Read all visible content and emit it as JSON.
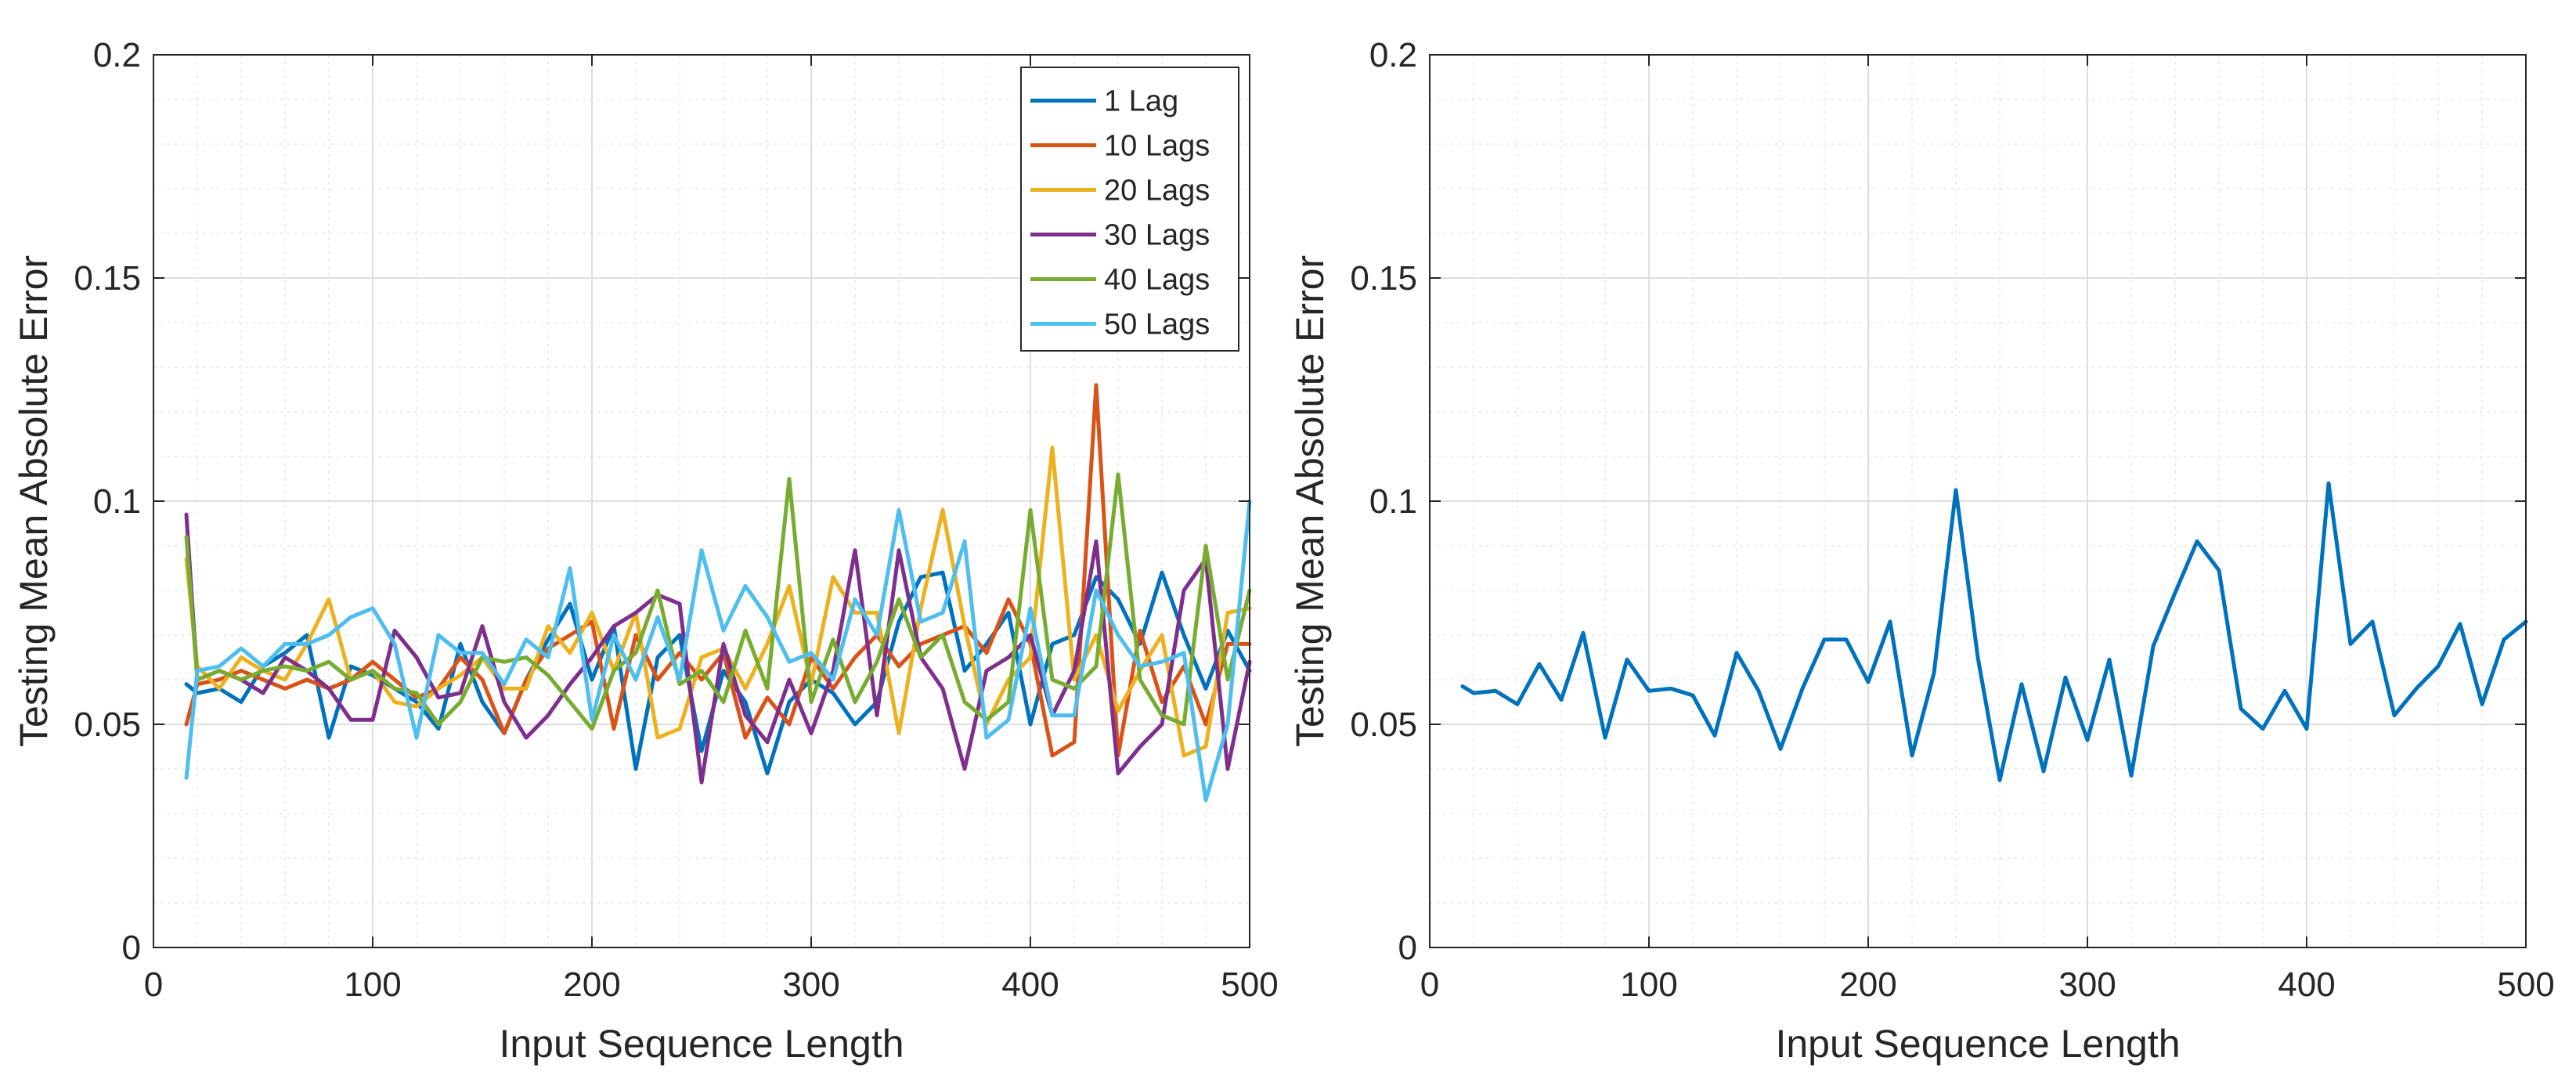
{
  "colors": {
    "series": [
      "#0072BD",
      "#D95319",
      "#EDB120",
      "#7E2F8E",
      "#77AC30",
      "#4DBEEE"
    ],
    "axis": "#262626",
    "grid_major": "#dedede",
    "grid_minor": "#ececec",
    "background": "#ffffff"
  },
  "chart_data": [
    {
      "type": "line",
      "title": "",
      "xlabel": "Input Sequence Length",
      "ylabel": "Testing Mean Absolute Error",
      "xlim": [
        0,
        500
      ],
      "ylim": [
        0,
        0.2
      ],
      "xticks": [
        0,
        100,
        200,
        300,
        400,
        500
      ],
      "xtick_labels": [
        "0",
        "100",
        "200",
        "300",
        "400",
        "500"
      ],
      "yticks": [
        0,
        0.05,
        0.1,
        0.15,
        0.2
      ],
      "ytick_labels": [
        "0",
        "0.05",
        "0.1",
        "0.15",
        "0.2"
      ],
      "grid": true,
      "minor_grid": true,
      "legend_position": "top-right",
      "x": [
        15,
        20,
        30,
        40,
        50,
        60,
        70,
        80,
        90,
        100,
        110,
        120,
        130,
        140,
        150,
        160,
        170,
        180,
        190,
        200,
        210,
        220,
        230,
        240,
        250,
        260,
        270,
        280,
        290,
        300,
        310,
        320,
        330,
        340,
        350,
        360,
        370,
        380,
        390,
        400,
        410,
        420,
        430,
        440,
        450,
        460,
        470,
        480,
        490,
        500
      ],
      "series": [
        {
          "name": "1 Lag",
          "values": [
            0.059,
            0.057,
            0.058,
            0.055,
            0.063,
            0.066,
            0.07,
            0.047,
            0.063,
            0.061,
            0.058,
            0.055,
            0.049,
            0.068,
            0.055,
            0.048,
            0.06,
            0.069,
            0.077,
            0.06,
            0.072,
            0.04,
            0.065,
            0.07,
            0.044,
            0.062,
            0.055,
            0.039,
            0.055,
            0.06,
            0.057,
            0.05,
            0.055,
            0.073,
            0.083,
            0.084,
            0.062,
            0.068,
            0.075,
            0.05,
            0.068,
            0.07,
            0.083,
            0.078,
            0.068,
            0.084,
            0.07,
            0.058,
            0.071,
            0.062
          ]
        },
        {
          "name": "10 Lags",
          "values": [
            0.05,
            0.059,
            0.06,
            0.062,
            0.06,
            0.058,
            0.06,
            0.058,
            0.06,
            0.064,
            0.06,
            0.056,
            0.058,
            0.065,
            0.06,
            0.048,
            0.06,
            0.067,
            0.07,
            0.073,
            0.049,
            0.07,
            0.06,
            0.066,
            0.06,
            0.066,
            0.047,
            0.056,
            0.05,
            0.065,
            0.058,
            0.065,
            0.07,
            0.063,
            0.068,
            0.07,
            0.072,
            0.066,
            0.078,
            0.068,
            0.043,
            0.046,
            0.126,
            0.043,
            0.071,
            0.055,
            0.063,
            0.05,
            0.068,
            0.068
          ]
        },
        {
          "name": "20 Lags",
          "values": [
            0.087,
            0.063,
            0.058,
            0.065,
            0.062,
            0.06,
            0.068,
            0.078,
            0.06,
            0.062,
            0.055,
            0.054,
            0.058,
            0.061,
            0.065,
            0.058,
            0.058,
            0.072,
            0.066,
            0.075,
            0.062,
            0.075,
            0.047,
            0.049,
            0.065,
            0.067,
            0.058,
            0.068,
            0.081,
            0.059,
            0.083,
            0.075,
            0.075,
            0.048,
            0.076,
            0.098,
            0.072,
            0.05,
            0.06,
            0.065,
            0.112,
            0.06,
            0.07,
            0.053,
            0.062,
            0.07,
            0.043,
            0.045,
            0.075,
            0.076
          ]
        },
        {
          "name": "30 Lags",
          "values": [
            0.097,
            0.06,
            0.062,
            0.06,
            0.057,
            0.065,
            0.062,
            0.058,
            0.051,
            0.051,
            0.071,
            0.065,
            0.056,
            0.057,
            0.072,
            0.055,
            0.047,
            0.052,
            0.059,
            0.065,
            0.072,
            0.075,
            0.079,
            0.077,
            0.037,
            0.068,
            0.052,
            0.046,
            0.06,
            0.048,
            0.062,
            0.089,
            0.052,
            0.089,
            0.065,
            0.058,
            0.04,
            0.062,
            0.065,
            0.07,
            0.052,
            0.062,
            0.091,
            0.039,
            0.045,
            0.05,
            0.08,
            0.087,
            0.04,
            0.064
          ]
        },
        {
          "name": "40 Lags",
          "values": [
            0.092,
            0.06,
            0.062,
            0.06,
            0.062,
            0.063,
            0.062,
            0.064,
            0.06,
            0.062,
            0.058,
            0.057,
            0.05,
            0.055,
            0.065,
            0.064,
            0.065,
            0.061,
            0.055,
            0.049,
            0.062,
            0.066,
            0.08,
            0.059,
            0.062,
            0.055,
            0.071,
            0.058,
            0.105,
            0.055,
            0.069,
            0.055,
            0.064,
            0.078,
            0.065,
            0.07,
            0.055,
            0.051,
            0.055,
            0.098,
            0.06,
            0.058,
            0.063,
            0.106,
            0.06,
            0.052,
            0.05,
            0.09,
            0.06,
            0.08
          ]
        },
        {
          "name": "50 Lags",
          "values": [
            0.038,
            0.062,
            0.063,
            0.067,
            0.063,
            0.068,
            0.068,
            0.07,
            0.074,
            0.076,
            0.068,
            0.047,
            0.07,
            0.066,
            0.066,
            0.059,
            0.069,
            0.065,
            0.085,
            0.051,
            0.07,
            0.06,
            0.074,
            0.06,
            0.089,
            0.071,
            0.081,
            0.074,
            0.064,
            0.066,
            0.06,
            0.078,
            0.07,
            0.098,
            0.073,
            0.075,
            0.091,
            0.047,
            0.051,
            0.076,
            0.052,
            0.052,
            0.08,
            0.07,
            0.063,
            0.064,
            0.066,
            0.033,
            0.05,
            0.1
          ]
        }
      ]
    },
    {
      "type": "line",
      "title": "",
      "xlabel": "Input Sequence Length",
      "ylabel": "Testing Mean Absolute Error",
      "xlim": [
        0,
        500
      ],
      "ylim": [
        0,
        0.2
      ],
      "xticks": [
        0,
        100,
        200,
        300,
        400,
        500
      ],
      "xtick_labels": [
        "0",
        "100",
        "200",
        "300",
        "400",
        "500"
      ],
      "yticks": [
        0,
        0.05,
        0.1,
        0.15,
        0.2
      ],
      "ytick_labels": [
        "0",
        "0.05",
        "0.1",
        "0.15",
        "0.2"
      ],
      "grid": true,
      "minor_grid": true,
      "x": [
        15,
        20,
        30,
        40,
        50,
        60,
        70,
        80,
        90,
        100,
        110,
        120,
        130,
        140,
        150,
        160,
        170,
        180,
        190,
        200,
        210,
        220,
        230,
        240,
        250,
        260,
        270,
        280,
        290,
        300,
        310,
        320,
        330,
        340,
        350,
        360,
        370,
        380,
        390,
        400,
        410,
        420,
        430,
        440,
        450,
        460,
        470,
        480,
        490,
        500
      ],
      "series": [
        {
          "name": "",
          "values": [
            0.0585,
            0.057,
            0.0575,
            0.0545,
            0.0635,
            0.0555,
            0.0705,
            0.047,
            0.0645,
            0.0575,
            0.058,
            0.0565,
            0.0475,
            0.066,
            0.0575,
            0.0445,
            0.058,
            0.069,
            0.069,
            0.0595,
            0.073,
            0.043,
            0.0615,
            0.1025,
            0.065,
            0.0375,
            0.059,
            0.0395,
            0.0605,
            0.0465,
            0.0645,
            0.0385,
            0.0675,
            0.0795,
            0.091,
            0.0845,
            0.0535,
            0.049,
            0.0575,
            0.049,
            0.104,
            0.068,
            0.073,
            0.052,
            0.058,
            0.063,
            0.0725,
            0.0545,
            0.069,
            0.073
          ]
        }
      ]
    }
  ]
}
